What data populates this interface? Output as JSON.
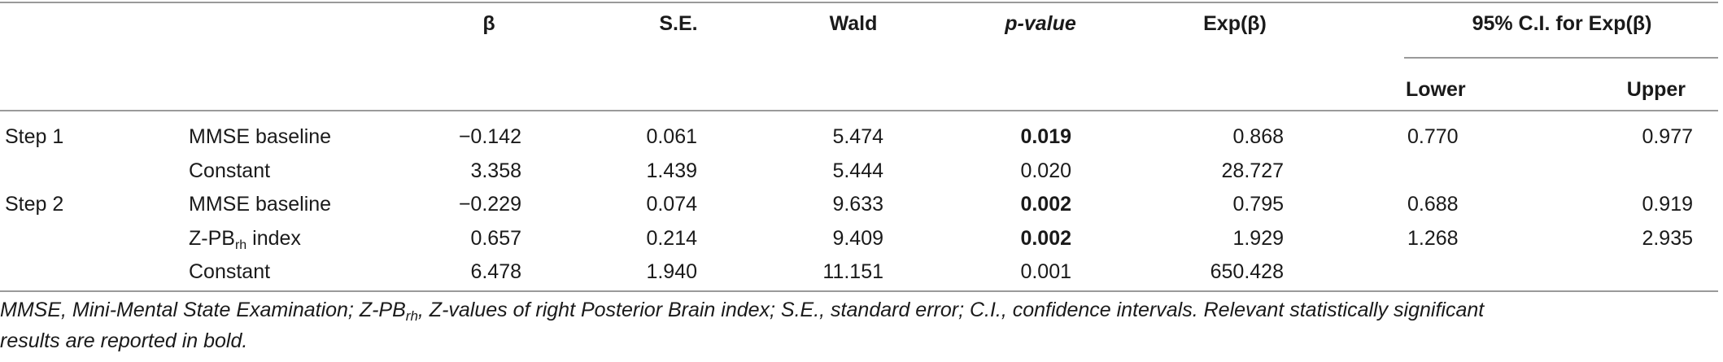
{
  "header": {
    "beta": "β",
    "se": "S.E.",
    "wald": "Wald",
    "pvalue": "p-value",
    "expb": "Exp(β)",
    "ci": "95% C.I. for Exp(β)",
    "lower": "Lower",
    "upper": "Upper"
  },
  "rows": [
    {
      "step": "Step 1",
      "var": "MMSE baseline",
      "beta": "−0.142",
      "se": "0.061",
      "wald": "5.474",
      "p": "0.019",
      "p_bold": true,
      "exp": "0.868",
      "lower": "0.770",
      "upper": "0.977"
    },
    {
      "step": "",
      "var": "Constant",
      "beta": "3.358",
      "se": "1.439",
      "wald": "5.444",
      "p": "0.020",
      "p_bold": false,
      "exp": "28.727",
      "lower": "",
      "upper": ""
    },
    {
      "step": "Step 2",
      "var": "MMSE baseline",
      "beta": "−0.229",
      "se": "0.074",
      "wald": "9.633",
      "p": "0.002",
      "p_bold": true,
      "exp": "0.795",
      "lower": "0.688",
      "upper": "0.919"
    },
    {
      "step": "",
      "var_main": "Z-PB",
      "var_sub": "rh",
      "var_tail": " index",
      "beta": "0.657",
      "se": "0.214",
      "wald": "9.409",
      "p": "0.002",
      "p_bold": true,
      "exp": "1.929",
      "lower": "1.268",
      "upper": "2.935"
    },
    {
      "step": "",
      "var": "Constant",
      "beta": "6.478",
      "se": "1.940",
      "wald": "11.151",
      "p": "0.001",
      "p_bold": false,
      "exp": "650.428",
      "lower": "",
      "upper": ""
    }
  ],
  "footnote": {
    "part1": "MMSE, Mini-Mental State Examination; Z-PB",
    "sub": "rh",
    "part2": ", Z-values of right Posterior Brain index; S.E., standard error; C.I., confidence intervals. Relevant statistically significant",
    "line2": "results are reported in bold."
  }
}
